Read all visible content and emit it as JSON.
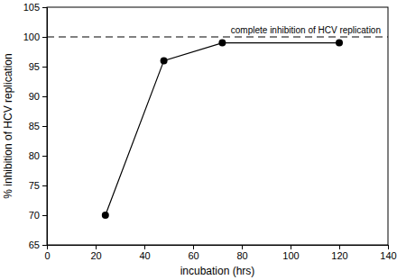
{
  "chart_data": {
    "type": "line",
    "x": [
      24,
      48,
      72,
      120
    ],
    "values": [
      70,
      96,
      99,
      99
    ],
    "color": "#000000",
    "marker": "circle",
    "line_style": "solid",
    "x_label": "incubation (hrs)",
    "y_label": "% inhibition of HCV replication",
    "xlim": [
      0,
      140
    ],
    "xticks": [
      0,
      20,
      40,
      60,
      80,
      100,
      120,
      140
    ],
    "ylim": [
      65,
      105
    ],
    "yticks": [
      65,
      70,
      75,
      80,
      85,
      90,
      95,
      100,
      105
    ],
    "grid": false,
    "annotations": [
      {
        "text": "complete inhibition of HCV replication",
        "y": 100
      }
    ]
  }
}
